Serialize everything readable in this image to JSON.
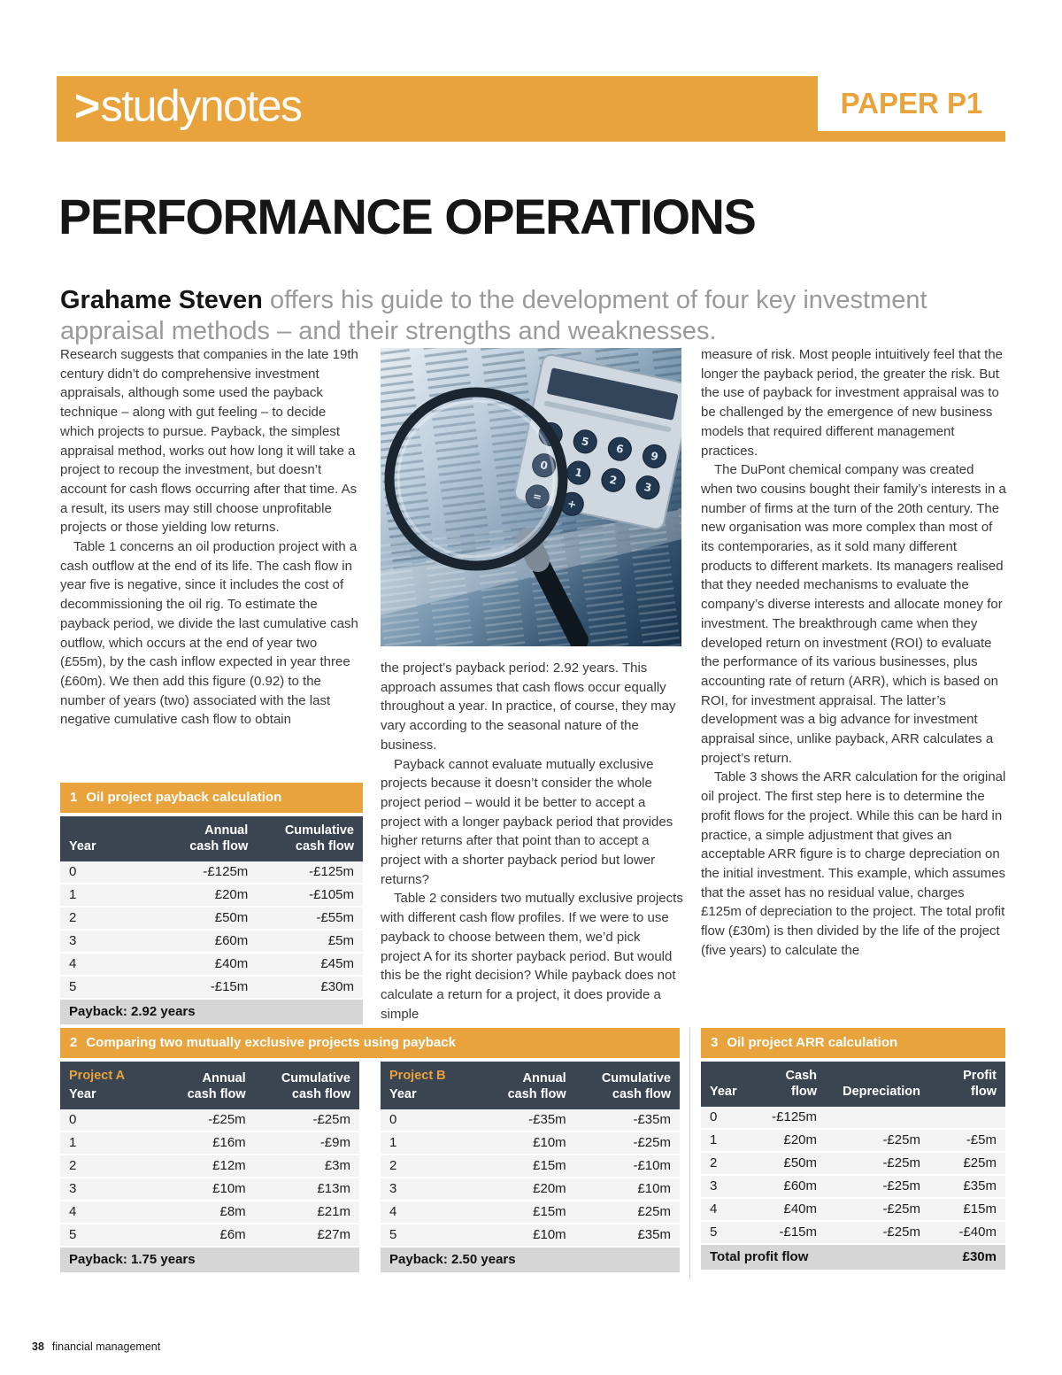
{
  "masthead": {
    "gt": ">",
    "study": "study",
    "notes": "notes",
    "paper": "PAPER P1"
  },
  "article": {
    "title": "PERFORMANCE OPERATIONS",
    "byline_name": "Grahame Steven",
    "byline_rest": " offers his guide to the development of four key investment appraisal methods – and their strengths and weaknesses.",
    "col1": [
      "Research suggests that companies in the late 19th century didn’t do comprehensive investment appraisals, although some used the payback technique – along with gut feeling – to decide which projects to pursue. Payback, the simplest appraisal method, works out how long it will take a project to recoup the investment, but doesn’t account for cash flows occurring after that time. As a result, its users may still choose unprofitable projects or those yielding low returns.",
      "Table 1 concerns an oil production project with a cash outflow at the end of its life. The cash flow in year five is negative, since it includes the cost of decommissioning the oil rig. To estimate the payback period, we divide the last cumulative cash outflow, which occurs at the end of year two (£55m), by the cash inflow expected in year three (£60m). We then add this figure (0.92) to the number of years (two) associated with the last negative cumulative cash flow to obtain"
    ],
    "col2": [
      "the project’s payback period: 2.92 years. This approach assumes that cash flows occur equally throughout a year. In practice, of course, they may vary according to the seasonal nature of the business.",
      "Payback cannot evaluate mutually exclusive projects because it doesn’t consider the whole project period – would it be better to accept a project with a longer payback period that provides higher returns after that point than to accept a project with a shorter payback period but lower returns?",
      "Table 2 considers two mutually exclusive projects with different cash flow profiles. If we were to use payback to choose between them, we’d pick project A for its shorter payback period. But would this be the right decision? While payback does not calculate a return for a project, it does provide a simple"
    ],
    "col3": [
      "measure of risk. Most people intuitively feel that the longer the payback period, the greater the risk. But the use of payback for investment appraisal was to be challenged by the emergence of new business models that required different management practices.",
      "The DuPont chemical company was created when two cousins bought their family’s interests in a number of firms at the turn of the 20th century. The new organisation was more complex than most of its contemporaries, as it sold many different products to different markets. Its managers realised that they needed mechanisms to evaluate the company’s diverse interests and allocate money for investment. The breakthrough came when they developed return on investment (ROI) to evaluate the performance of its various businesses, plus accounting rate of return (ARR), which is based on ROI, for investment appraisal. The latter’s development was a big advance for investment appraisal since, unlike payback, ARR calculates a project’s return.",
      "Table 3 shows the ARR calculation for the original oil project. The first step here is to determine the profit flows for the project. While this can be hard in practice, a simple adjustment that gives an acceptable ARR figure is to charge depreciation on the initial investment. This example, which assumes that the asset has no residual value, charges £125m of depreciation to the project. The total profit flow (£30m) is then divided by the life of the project (five years) to calculate the"
    ]
  },
  "photo": {
    "alt": "Calculator and magnifying glass resting on a financial newspaper",
    "calculator_keys": [
      "4",
      "5",
      "6",
      "9",
      "0",
      "1",
      "2",
      "3",
      "=",
      "+"
    ]
  },
  "table1": {
    "num": "1",
    "title": "Oil project payback calculation",
    "headers": [
      "Year",
      "Annual\ncash flow",
      "Cumulative\ncash flow"
    ],
    "rows": [
      [
        "0",
        "-£125m",
        "-£125m"
      ],
      [
        "1",
        "£20m",
        "-£105m"
      ],
      [
        "2",
        "£50m",
        "-£55m"
      ],
      [
        "3",
        "£60m",
        "£5m"
      ],
      [
        "4",
        "£40m",
        "£45m"
      ],
      [
        "5",
        "-£15m",
        "£30m"
      ]
    ],
    "footer": "Payback: 2.92 years"
  },
  "table2": {
    "num": "2",
    "title": "Comparing two mutually exclusive projects using payback",
    "a": {
      "project": "Project A",
      "headers": [
        "Year",
        "Annual\ncash flow",
        "Cumulative\ncash flow"
      ],
      "rows": [
        [
          "0",
          "-£25m",
          "-£25m"
        ],
        [
          "1",
          "£16m",
          "-£9m"
        ],
        [
          "2",
          "£12m",
          "£3m"
        ],
        [
          "3",
          "£10m",
          "£13m"
        ],
        [
          "4",
          "£8m",
          "£21m"
        ],
        [
          "5",
          "£6m",
          "£27m"
        ]
      ],
      "footer": "Payback: 1.75 years"
    },
    "b": {
      "project": "Project B",
      "headers": [
        "Year",
        "Annual\ncash flow",
        "Cumulative\ncash flow"
      ],
      "rows": [
        [
          "0",
          "-£35m",
          "-£35m"
        ],
        [
          "1",
          "£10m",
          "-£25m"
        ],
        [
          "2",
          "£15m",
          "-£10m"
        ],
        [
          "3",
          "£20m",
          "£10m"
        ],
        [
          "4",
          "£15m",
          "£25m"
        ],
        [
          "5",
          "£10m",
          "£35m"
        ]
      ],
      "footer": "Payback: 2.50 years"
    }
  },
  "table3": {
    "num": "3",
    "title": "Oil project ARR calculation",
    "headers": [
      "Year",
      "Cash\nflow",
      "Depreciation",
      "Profit\nflow"
    ],
    "rows": [
      [
        "0",
        "-£125m",
        "",
        ""
      ],
      [
        "1",
        "£20m",
        "-£25m",
        "-£5m"
      ],
      [
        "2",
        "£50m",
        "-£25m",
        "£25m"
      ],
      [
        "3",
        "£60m",
        "-£25m",
        "£35m"
      ],
      [
        "4",
        "£40m",
        "-£25m",
        "£15m"
      ],
      [
        "5",
        "-£15m",
        "-£25m",
        "-£40m"
      ]
    ],
    "footer_label": "Total profit flow",
    "footer_value": "£30m"
  },
  "pagefoot": {
    "page": "38",
    "magazine": "financial management"
  }
}
